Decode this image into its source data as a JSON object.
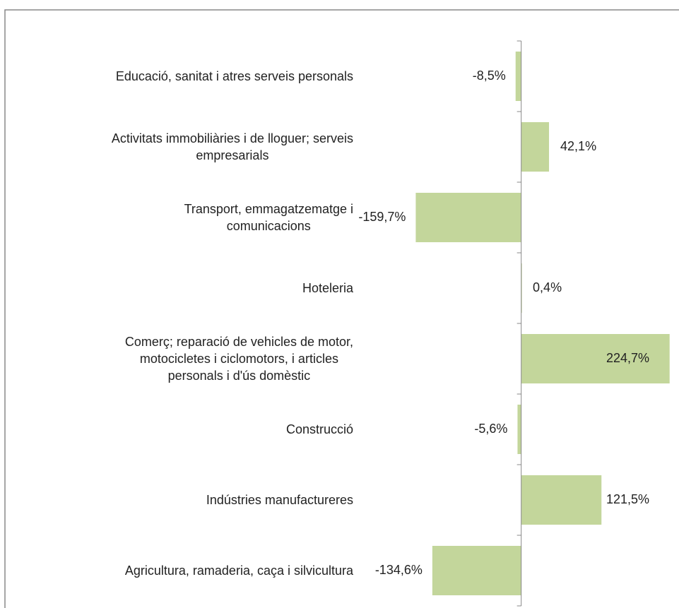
{
  "chart_data": {
    "type": "barh",
    "categories": [
      "Educació, sanitat i atres serveis personals",
      "Activitats immobiliàries i de lloguer; serveis\nempresarials",
      "Transport, emmagatzematge i\ncomunicacions",
      "Hoteleria",
      "Comerç; reparació de vehicles de motor,\nmotocicletes i ciclomotors, i articles\npersonals i d'ús domèstic",
      "Construcció",
      "Indústries manufactureres",
      "Agricultura, ramaderia, caça i silvicultura"
    ],
    "values": [
      -8.5,
      42.1,
      -159.7,
      0.4,
      224.7,
      -5.6,
      121.5,
      -134.6
    ],
    "value_labels": [
      "-8,5%",
      "42,1%",
      "-159,7%",
      "0,4%",
      "224,7%",
      "-5,6%",
      "121,5%",
      "-134,6%"
    ],
    "color": "#c3d69b",
    "xlim": [
      -250,
      225
    ]
  }
}
